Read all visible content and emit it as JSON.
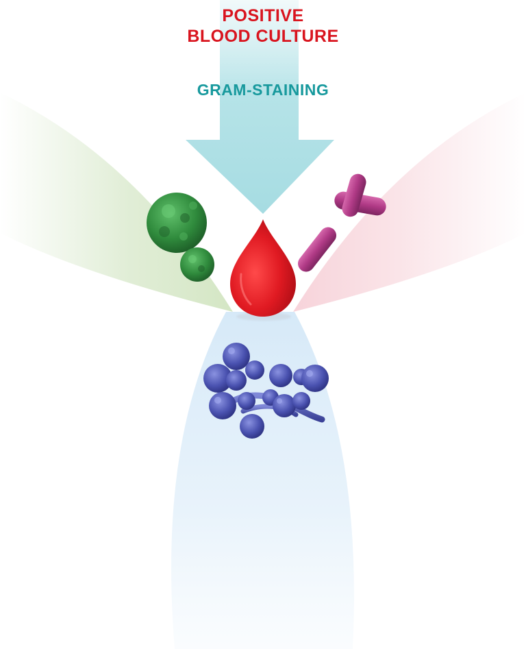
{
  "header": {
    "title_line1": "POSITIVE",
    "title_line2": "BLOOD CULTURE",
    "subtitle": "GRAM-STAINING"
  },
  "colors": {
    "title": "#d9141e",
    "subtitle": "#17999d",
    "arrow": "#a9dde3",
    "drop": "#d9141e",
    "green_fan": "#d9e9cc",
    "pink_fan": "#f9dde2",
    "blue_fan": "#dcecf8",
    "gram_positive_cocci": "#2f8a3c",
    "gram_negative_rods": "#b03a86",
    "yeast": "#4a52b0"
  },
  "icons": {
    "arrow": "down-arrow-icon",
    "drop": "blood-drop-icon",
    "cocci": "cocci-bacteria-icon",
    "rods": "rod-bacteria-icon",
    "yeast": "yeast-cluster-icon"
  }
}
